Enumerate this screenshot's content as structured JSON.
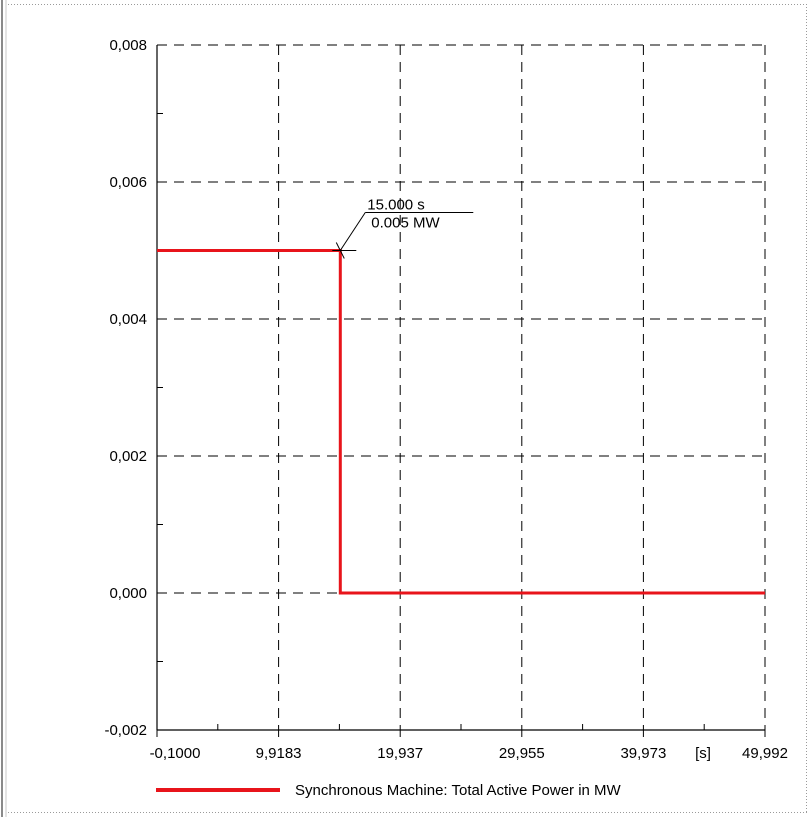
{
  "colors": {
    "series": "#e8141b",
    "grid": "#000000",
    "frame_border": "#9a9a9a"
  },
  "chart_data": {
    "type": "line",
    "step": true,
    "xlim": [
      -0.1,
      49.992
    ],
    "ylim": [
      -0.002,
      0.008
    ],
    "grid": true,
    "legend_position": "bottom",
    "x_ticks": [
      {
        "value": -0.1,
        "label": "-0,1000"
      },
      {
        "value": 9.9183,
        "label": "9,9183"
      },
      {
        "value": 19.937,
        "label": "19,937"
      },
      {
        "value": 29.955,
        "label": "29,955"
      },
      {
        "value": 39.973,
        "label": "39,973"
      },
      {
        "value": 49.992,
        "label": "49,992"
      }
    ],
    "x_unit": "[s]",
    "y_ticks": [
      {
        "value": -0.002,
        "label": "-0,002"
      },
      {
        "value": 0.0,
        "label": "0,000"
      },
      {
        "value": 0.002,
        "label": "0,002"
      },
      {
        "value": 0.004,
        "label": "0,004"
      },
      {
        "value": 0.006,
        "label": "0,006"
      },
      {
        "value": 0.008,
        "label": "0,008"
      }
    ],
    "series": [
      {
        "name": "Synchronous Machine: Total Active Power in MW",
        "color": "#e8141b",
        "x": [
          -0.1,
          15.0,
          15.0,
          49.992
        ],
        "y": [
          0.005,
          0.005,
          0.0,
          0.0
        ]
      }
    ],
    "annotations": [
      {
        "x": 15.0,
        "y": 0.005,
        "line1": "15.000 s",
        "line2": "0.005 MW"
      }
    ]
  }
}
